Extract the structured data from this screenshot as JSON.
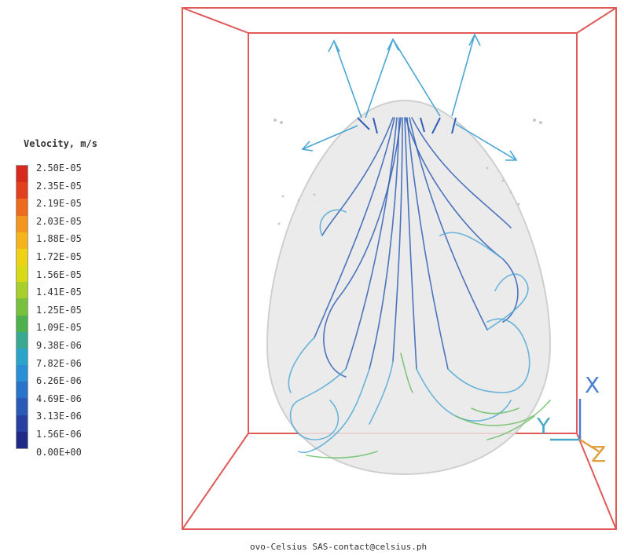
{
  "legend": {
    "title": "Velocity, m/s",
    "labels": [
      "2.50E-05",
      "2.35E-05",
      "2.19E-05",
      "2.03E-05",
      "1.88E-05",
      "1.72E-05",
      "1.56E-05",
      "1.41E-05",
      "1.25E-05",
      "1.09E-05",
      "9.38E-06",
      "7.82E-06",
      "6.26E-06",
      "4.69E-06",
      "3.13E-06",
      "1.56E-06",
      "0.00E+00"
    ],
    "colors": [
      "#d62a1e",
      "#e2401f",
      "#ec6b1f",
      "#f2961d",
      "#f4b41b",
      "#f0d214",
      "#d8da16",
      "#a8cf2a",
      "#78c03d",
      "#4fb04e",
      "#3aa991",
      "#2aa4c8",
      "#2a8fd4",
      "#2b73c8",
      "#2a59b6",
      "#2740a0",
      "#1f2a86"
    ]
  },
  "axes": {
    "x": "X",
    "y": "Y",
    "z": "Z"
  },
  "footer": "ovo-Celsius SAS-contact@celsius.ph",
  "colors": {
    "box": "#e05a5a",
    "egg_fill": "#e6e6e6",
    "stream_dark": "#2f5fb5",
    "stream_light": "#4aa6d4",
    "stream_green": "#6fbf6a"
  }
}
